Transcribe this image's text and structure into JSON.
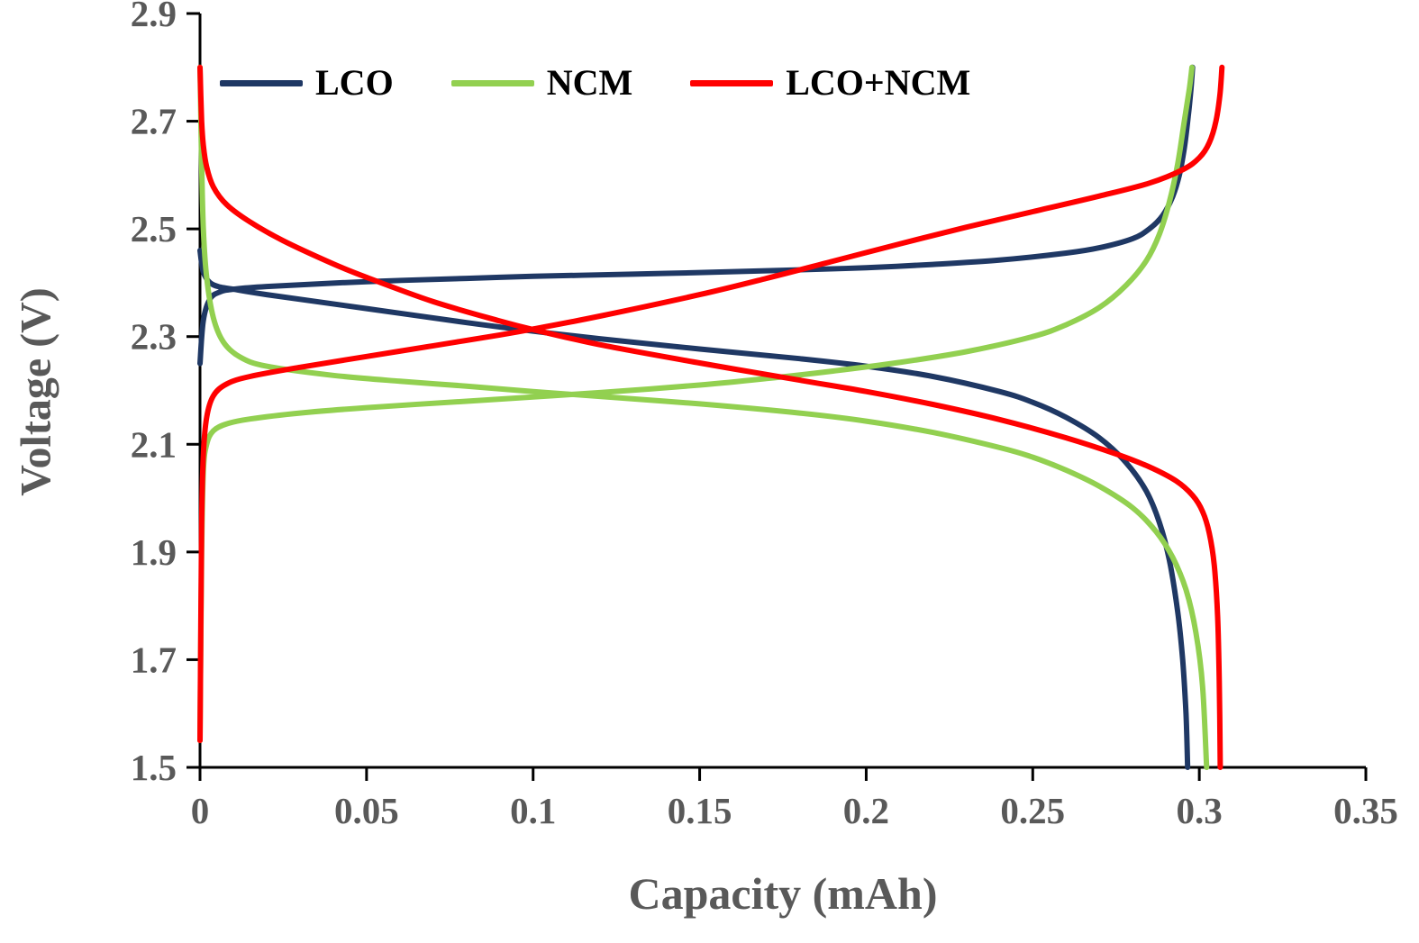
{
  "chart_data": {
    "type": "line",
    "title": "",
    "xlabel": "Capacity (mAh)",
    "ylabel": "Voltage (V)",
    "xlim": [
      0,
      0.35
    ],
    "ylim": [
      1.5,
      2.9
    ],
    "grid": false,
    "legend_position": "top-left-inside",
    "axis_color": "#000000",
    "tick_color": "#595959",
    "xticks": [
      {
        "value": 0,
        "label": "0"
      },
      {
        "value": 0.05,
        "label": "0.05"
      },
      {
        "value": 0.1,
        "label": "0.1"
      },
      {
        "value": 0.15,
        "label": "0.15"
      },
      {
        "value": 0.2,
        "label": "0.2"
      },
      {
        "value": 0.25,
        "label": "0.25"
      },
      {
        "value": 0.3,
        "label": "0.3"
      },
      {
        "value": 0.35,
        "label": "0.35"
      }
    ],
    "yticks": [
      {
        "value": 1.5,
        "label": "1.5"
      },
      {
        "value": 1.7,
        "label": "1.7"
      },
      {
        "value": 1.9,
        "label": "1.9"
      },
      {
        "value": 2.1,
        "label": "2.1"
      },
      {
        "value": 2.3,
        "label": "2.3"
      },
      {
        "value": 2.5,
        "label": "2.5"
      },
      {
        "value": 2.7,
        "label": "2.7"
      },
      {
        "value": 2.9,
        "label": "2.9"
      }
    ],
    "series": [
      {
        "name": "LCO",
        "color": "#1f3864",
        "charge": [
          [
            0,
            2.25
          ],
          [
            0.001,
            2.33
          ],
          [
            0.003,
            2.37
          ],
          [
            0.006,
            2.383
          ],
          [
            0.01,
            2.388
          ],
          [
            0.02,
            2.393
          ],
          [
            0.05,
            2.402
          ],
          [
            0.08,
            2.408
          ],
          [
            0.1,
            2.412
          ],
          [
            0.13,
            2.416
          ],
          [
            0.15,
            2.419
          ],
          [
            0.18,
            2.424
          ],
          [
            0.2,
            2.428
          ],
          [
            0.22,
            2.434
          ],
          [
            0.24,
            2.442
          ],
          [
            0.26,
            2.455
          ],
          [
            0.27,
            2.465
          ],
          [
            0.28,
            2.482
          ],
          [
            0.285,
            2.5
          ],
          [
            0.289,
            2.525
          ],
          [
            0.292,
            2.56
          ],
          [
            0.294,
            2.6
          ],
          [
            0.2955,
            2.65
          ],
          [
            0.2967,
            2.71
          ],
          [
            0.2975,
            2.76
          ],
          [
            0.298,
            2.8
          ]
        ],
        "discharge": [
          [
            0,
            2.46
          ],
          [
            0.001,
            2.42
          ],
          [
            0.003,
            2.4
          ],
          [
            0.006,
            2.392
          ],
          [
            0.01,
            2.388
          ],
          [
            0.02,
            2.378
          ],
          [
            0.05,
            2.352
          ],
          [
            0.08,
            2.326
          ],
          [
            0.1,
            2.31
          ],
          [
            0.12,
            2.296
          ],
          [
            0.15,
            2.277
          ],
          [
            0.18,
            2.259
          ],
          [
            0.2,
            2.245
          ],
          [
            0.22,
            2.226
          ],
          [
            0.24,
            2.198
          ],
          [
            0.25,
            2.178
          ],
          [
            0.26,
            2.15
          ],
          [
            0.27,
            2.112
          ],
          [
            0.278,
            2.066
          ],
          [
            0.284,
            2.014
          ],
          [
            0.288,
            1.955
          ],
          [
            0.291,
            1.885
          ],
          [
            0.2935,
            1.79
          ],
          [
            0.295,
            1.7
          ],
          [
            0.296,
            1.6
          ],
          [
            0.2965,
            1.5
          ]
        ]
      },
      {
        "name": "NCM",
        "color": "#92d050",
        "charge": [
          [
            0,
            1.55
          ],
          [
            0.0005,
            1.9
          ],
          [
            0.001,
            2.05
          ],
          [
            0.002,
            2.1
          ],
          [
            0.004,
            2.125
          ],
          [
            0.008,
            2.138
          ],
          [
            0.015,
            2.147
          ],
          [
            0.03,
            2.158
          ],
          [
            0.05,
            2.168
          ],
          [
            0.08,
            2.18
          ],
          [
            0.1,
            2.188
          ],
          [
            0.12,
            2.196
          ],
          [
            0.15,
            2.21
          ],
          [
            0.17,
            2.222
          ],
          [
            0.19,
            2.236
          ],
          [
            0.21,
            2.252
          ],
          [
            0.23,
            2.272
          ],
          [
            0.25,
            2.3
          ],
          [
            0.26,
            2.322
          ],
          [
            0.27,
            2.354
          ],
          [
            0.278,
            2.395
          ],
          [
            0.284,
            2.44
          ],
          [
            0.288,
            2.49
          ],
          [
            0.291,
            2.55
          ],
          [
            0.2935,
            2.62
          ],
          [
            0.2955,
            2.7
          ],
          [
            0.297,
            2.76
          ],
          [
            0.2978,
            2.8
          ]
        ],
        "discharge": [
          [
            0,
            2.8
          ],
          [
            0.0005,
            2.62
          ],
          [
            0.001,
            2.5
          ],
          [
            0.002,
            2.41
          ],
          [
            0.004,
            2.335
          ],
          [
            0.007,
            2.29
          ],
          [
            0.012,
            2.262
          ],
          [
            0.02,
            2.245
          ],
          [
            0.04,
            2.228
          ],
          [
            0.06,
            2.217
          ],
          [
            0.08,
            2.208
          ],
          [
            0.1,
            2.198
          ],
          [
            0.12,
            2.189
          ],
          [
            0.15,
            2.175
          ],
          [
            0.18,
            2.158
          ],
          [
            0.2,
            2.143
          ],
          [
            0.22,
            2.122
          ],
          [
            0.24,
            2.094
          ],
          [
            0.25,
            2.076
          ],
          [
            0.26,
            2.052
          ],
          [
            0.27,
            2.022
          ],
          [
            0.28,
            1.982
          ],
          [
            0.287,
            1.938
          ],
          [
            0.292,
            1.89
          ],
          [
            0.296,
            1.83
          ],
          [
            0.299,
            1.75
          ],
          [
            0.301,
            1.65
          ],
          [
            0.3022,
            1.5
          ]
        ]
      },
      {
        "name": "LCO+NCM",
        "color": "#ff0000",
        "charge": [
          [
            0,
            1.55
          ],
          [
            0.0005,
            1.95
          ],
          [
            0.001,
            2.08
          ],
          [
            0.002,
            2.15
          ],
          [
            0.004,
            2.19
          ],
          [
            0.008,
            2.212
          ],
          [
            0.015,
            2.226
          ],
          [
            0.03,
            2.243
          ],
          [
            0.05,
            2.263
          ],
          [
            0.07,
            2.283
          ],
          [
            0.09,
            2.303
          ],
          [
            0.1,
            2.314
          ],
          [
            0.12,
            2.338
          ],
          [
            0.15,
            2.378
          ],
          [
            0.17,
            2.408
          ],
          [
            0.19,
            2.44
          ],
          [
            0.21,
            2.472
          ],
          [
            0.23,
            2.503
          ],
          [
            0.25,
            2.532
          ],
          [
            0.27,
            2.561
          ],
          [
            0.285,
            2.585
          ],
          [
            0.295,
            2.61
          ],
          [
            0.3,
            2.632
          ],
          [
            0.303,
            2.66
          ],
          [
            0.305,
            2.7
          ],
          [
            0.3062,
            2.75
          ],
          [
            0.3068,
            2.8
          ]
        ],
        "discharge": [
          [
            0,
            2.8
          ],
          [
            0.0005,
            2.7
          ],
          [
            0.001,
            2.655
          ],
          [
            0.002,
            2.615
          ],
          [
            0.004,
            2.578
          ],
          [
            0.008,
            2.545
          ],
          [
            0.015,
            2.513
          ],
          [
            0.025,
            2.478
          ],
          [
            0.04,
            2.435
          ],
          [
            0.05,
            2.41
          ],
          [
            0.07,
            2.365
          ],
          [
            0.09,
            2.329
          ],
          [
            0.1,
            2.313
          ],
          [
            0.12,
            2.285
          ],
          [
            0.15,
            2.251
          ],
          [
            0.18,
            2.219
          ],
          [
            0.2,
            2.198
          ],
          [
            0.22,
            2.174
          ],
          [
            0.24,
            2.146
          ],
          [
            0.26,
            2.112
          ],
          [
            0.275,
            2.082
          ],
          [
            0.285,
            2.058
          ],
          [
            0.293,
            2.032
          ],
          [
            0.298,
            2.005
          ],
          [
            0.301,
            1.975
          ],
          [
            0.303,
            1.935
          ],
          [
            0.3045,
            1.875
          ],
          [
            0.3055,
            1.78
          ],
          [
            0.306,
            1.66
          ],
          [
            0.3063,
            1.5
          ]
        ]
      }
    ]
  }
}
